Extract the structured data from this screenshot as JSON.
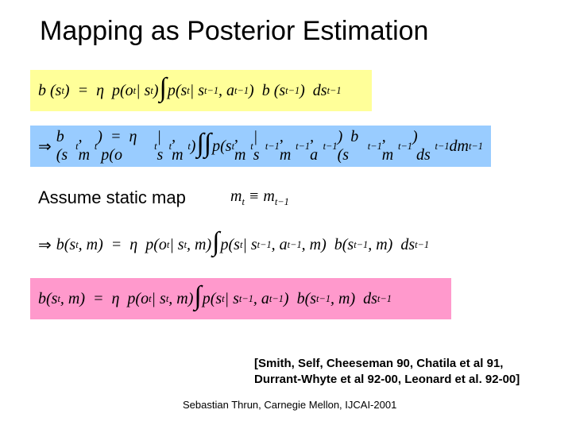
{
  "title": "Mapping as Posterior Estimation",
  "assume_label": "Assume static map",
  "assume_math": "m<sub>t</sub> ≡ m<sub>t−1</sub>",
  "eq": {
    "yellow": "b (s<sub>t</sub>) &nbsp;=&nbsp; η &nbsp;p(o<sub>t</sub> | s<sub>t</sub>) <span class=\"intg\">∫</span> p(s<sub>t</sub> | s<sub>t−1</sub>, a<sub>t−1</sub>) &nbsp;b (s<sub>t−1</sub>) &nbsp;ds<sub>t−1</sub>",
    "blue": "<span class=\"arrow\">⇒</span> b (s<sub>t</sub>, m<sub>t</sub>) &nbsp;=&nbsp; η &nbsp;p(o<sub>t</sub> | s<sub>t</sub>, m<sub>t</sub>) <span class=\"intg\">∫∫</span> p(s<sub>t</sub>, m<sub>t</sub> | s<sub>t−1</sub>, m<sub>t−1</sub>, a<sub>t−1</sub>) &nbsp;b (s<sub>t−1</sub>, m<sub>t−1</sub>) &nbsp;ds<sub>t−1</sub> dm<sub>t−1</sub>",
    "white": "<span class=\"arrow\">⇒</span> b(s<sub>t</sub>, m) &nbsp;=&nbsp; η &nbsp;p(o<sub>t</sub> | s<sub>t</sub>, m) <span class=\"intg\">∫</span> p(s<sub>t</sub> | s<sub>t−1</sub>, a<sub>t−1</sub>, m) &nbsp;b(s<sub>t−1</sub>, m) &nbsp;ds<sub>t−1</sub>",
    "pink": "b(s<sub>t</sub>, m) &nbsp;=&nbsp; η &nbsp;p(o<sub>t</sub> | s<sub>t</sub>, m) <span class=\"intg\">∫</span> p(s<sub>t</sub> | s<sub>t−1</sub>, a<sub>t−1</sub>) &nbsp;b(s<sub>t−1</sub>, m) &nbsp;ds<sub>t−1</sub>"
  },
  "references": "[Smith, Self, Cheeseman 90, Chatila et al 91,<br>Durrant-Whyte et al 92-00, Leonard et al. 92-00]",
  "footer": "Sebastian Thrun, Carnegie Mellon, IJCAI-2001",
  "colors": {
    "yellow": "#ffff99",
    "blue": "#99ccff",
    "pink": "#ff99cc",
    "white": "#ffffff",
    "text": "#000000"
  },
  "typography": {
    "title_fontsize": 34,
    "body_fontsize": 22,
    "math_fontsize": 20,
    "footer_fontsize": 13,
    "refs_fontsize": 15,
    "refs_weight": "bold",
    "math_family": "Times New Roman"
  },
  "layout": {
    "slide_size": [
      720,
      540
    ]
  }
}
